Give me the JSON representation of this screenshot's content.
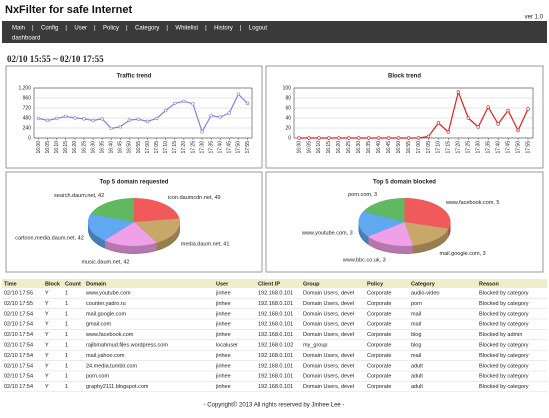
{
  "header": {
    "title": "NxFilter for safe Internet",
    "version": "ver 1.0"
  },
  "nav": {
    "items": [
      "Main",
      "Config",
      "User",
      "Policy",
      "Category",
      "Whitelist",
      "History",
      "Logout"
    ],
    "separator": "|",
    "sub": "dashboard"
  },
  "range": "02/10 15:55 ~ 02/10 17:55",
  "chart_data": [
    {
      "type": "line",
      "title": "Traffic trend",
      "color": "#8080e0",
      "grid": true,
      "categories": [
        "16:00",
        "16:05",
        "16:10",
        "16:15",
        "16:20",
        "16:25",
        "16:30",
        "16:35",
        "16:40",
        "16:45",
        "16:50",
        "16:55",
        "17:00",
        "17:05",
        "17:10",
        "17:15",
        "17:20",
        "17:25",
        "17:30",
        "17:35",
        "17:40",
        "17:45",
        "17:50",
        "17:55"
      ],
      "values": [
        470,
        420,
        470,
        520,
        480,
        460,
        420,
        460,
        230,
        270,
        430,
        450,
        400,
        470,
        660,
        830,
        880,
        820,
        150,
        540,
        500,
        600,
        1050,
        830
      ],
      "ylim": [
        0,
        1200
      ],
      "yticks": [
        0,
        240,
        480,
        720,
        960,
        {
          "value": 1200,
          "label": "1,200"
        }
      ]
    },
    {
      "type": "line",
      "title": "Block trend",
      "color": "#e02020",
      "grid": true,
      "categories": [
        "16:00",
        "16:05",
        "16:10",
        "16:15",
        "16:20",
        "16:25",
        "16:30",
        "16:35",
        "16:40",
        "16:45",
        "16:50",
        "16:55",
        "17:00",
        "17:05",
        "17:10",
        "17:15",
        "17:20",
        "17:25",
        "17:30",
        "17:35",
        "17:40",
        "17:45",
        "17:50",
        "17:55"
      ],
      "values": [
        0,
        0,
        0,
        0,
        0,
        0,
        0,
        0,
        0,
        0,
        0,
        0,
        0,
        3,
        30,
        12,
        92,
        40,
        22,
        62,
        28,
        55,
        15,
        58
      ],
      "ylim": [
        0,
        100
      ],
      "yticks": [
        0,
        20,
        40,
        60,
        80,
        100
      ]
    },
    {
      "type": "pie",
      "title": "Top 5 domain requested",
      "categories": [
        "icon.daumcdn.net",
        "media.daum.net",
        "music.daum.net",
        "cartoon.media.daum.net",
        "search.daum.net"
      ],
      "values": [
        49,
        41,
        42,
        42,
        42
      ],
      "value_labels": [
        "icon.daumcdn.net, 49",
        "media.daum.net, 41",
        "music.daum.net, 42",
        "cartoon.media.daum.net, 42",
        "search.daum.net, 42"
      ],
      "colors": [
        "#f05a5a",
        "#c8a868",
        "#f0a0e8",
        "#60a8f0",
        "#60b860"
      ]
    },
    {
      "type": "pie",
      "title": "Top 5 domain blocked",
      "categories": [
        "www.facebook.com",
        "mail.google.com",
        "www.bbc.co.uk",
        "www.youtube.com",
        "porn.com"
      ],
      "values": [
        5,
        3,
        3,
        3,
        3
      ],
      "value_labels": [
        "www.facebook.com, 5",
        "mail.google.com, 3",
        "www.bbc.co.uk, 3",
        "www.youtube.com, 3",
        "porn.com, 3"
      ],
      "colors": [
        "#f05a5a",
        "#c8a868",
        "#f0a0e8",
        "#60a8f0",
        "#60b860"
      ]
    }
  ],
  "table": {
    "columns": [
      "Time",
      "Block",
      "Count",
      "Domain",
      "User",
      "Client IP",
      "Group",
      "Policy",
      "Category",
      "Reason"
    ],
    "rows": [
      [
        "02/10 17:55",
        "Y",
        "1",
        "www.youtube.com",
        "jinhee",
        "192.168.0.101",
        "Domain Users, devel",
        "Corporate",
        "audio-video",
        "Blocked by category"
      ],
      [
        "02/10 17:55",
        "Y",
        "1",
        "counter.yadro.ru",
        "jinhee",
        "192.168.0.101",
        "Domain Users, devel",
        "Corporate",
        "porn",
        "Blocked by category"
      ],
      [
        "02/10 17:54",
        "Y",
        "1",
        "mail.google.com",
        "jinhee",
        "192.168.0.101",
        "Domain Users, devel",
        "Corporate",
        "mail",
        "Blocked by category"
      ],
      [
        "02/10 17:54",
        "Y",
        "1",
        "gmail.com",
        "jinhee",
        "192.168.0.101",
        "Domain Users, devel",
        "Corporate",
        "mail",
        "Blocked by category"
      ],
      [
        "02/10 17:54",
        "Y",
        "1",
        "www.facebook.com",
        "jinhee",
        "192.168.0.101",
        "Domain Users, devel",
        "Corporate",
        "blog",
        "Blocked by admin"
      ],
      [
        "02/10 17:54",
        "Y",
        "1",
        "rajibmahmud.files.wordpress.com",
        "localuser",
        "192.168.0.102",
        "my_group",
        "Corporate",
        "blog",
        "Blocked by category"
      ],
      [
        "02/10 17:54",
        "Y",
        "1",
        "mail.yahoo.com",
        "jinhee",
        "192.168.0.101",
        "Domain Users, devel",
        "Corporate",
        "mail",
        "Blocked by category"
      ],
      [
        "02/10 17:54",
        "Y",
        "1",
        "24.media.tumblr.com",
        "jinhee",
        "192.168.0.101",
        "Domain Users, devel",
        "Corporate",
        "adult",
        "Blocked by category"
      ],
      [
        "02/10 17:54",
        "Y",
        "1",
        "porn.com",
        "jinhee",
        "192.168.0.101",
        "Domain Users, devel",
        "Corporate",
        "adult",
        "Blocked by category"
      ],
      [
        "02/10 17:54",
        "Y",
        "1",
        "graphy2111.blogspot.com",
        "jinhee",
        "192.168.0.101",
        "Domain Users, devel",
        "Corporate",
        "adult",
        "Blocked by category"
      ]
    ]
  },
  "footer": "- Copyright© 2013 All rights reserved by Jinhee Lee -"
}
